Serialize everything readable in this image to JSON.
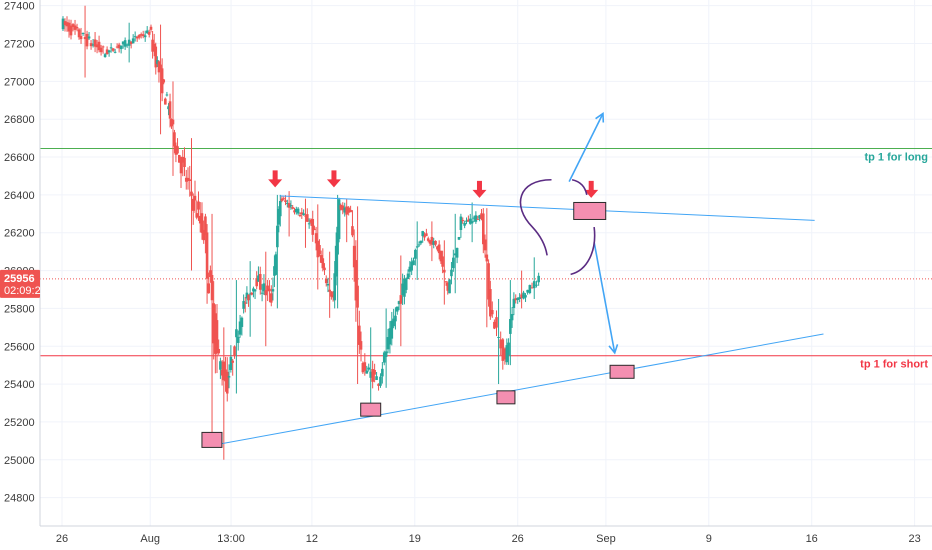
{
  "chart_data": {
    "type": "candlestick",
    "title": "",
    "xlabel": "",
    "ylabel": "",
    "ylim": [
      24650,
      27430
    ],
    "y_ticks": [
      24800,
      25000,
      25200,
      25400,
      25600,
      25800,
      26000,
      26200,
      26400,
      26600,
      26800,
      27000,
      27200,
      27400
    ],
    "x_ticks": [
      {
        "label": "26",
        "day": 0
      },
      {
        "label": "Aug",
        "day": 6
      },
      {
        "label": "13:00",
        "day": 11.5
      },
      {
        "label": "12",
        "day": 17
      },
      {
        "label": "19",
        "day": 24
      },
      {
        "label": "26",
        "day": 31
      },
      {
        "label": "Sep",
        "day": 37
      },
      {
        "label": "9",
        "day": 44
      },
      {
        "label": "16",
        "day": 51
      },
      {
        "label": "23",
        "day": 58
      }
    ],
    "grid": true,
    "colors": {
      "up": "#26a69a",
      "down": "#ef5350",
      "trendline": "#42a5f5",
      "long_level": "#4caf50",
      "short_level": "#f23645",
      "box_fill": "#f48fb1",
      "arc": "#5b2c83",
      "arrow": "#f23645"
    },
    "price_label": {
      "value": "25956",
      "countdown": "02:09:2"
    },
    "current_price": 25956,
    "levels": [
      {
        "label": "tp 1  for long",
        "value": 26645,
        "color": "#26a69a"
      },
      {
        "label": "tp 1 for short",
        "value": 25550,
        "color": "#f23645"
      }
    ],
    "trendlines": [
      {
        "name": "resistance",
        "from": {
          "day": 14.8,
          "price": 26395
        },
        "to": {
          "day": 51.2,
          "price": 26265
        }
      },
      {
        "name": "support",
        "from": {
          "day": 10.5,
          "price": 25080
        },
        "to": {
          "day": 51.8,
          "price": 25665
        }
      }
    ],
    "boxes": [
      {
        "day": 10.2,
        "price": 25105
      },
      {
        "day": 21.0,
        "price": 25265
      },
      {
        "day": 30.2,
        "price": 25330
      },
      {
        "day": 35.9,
        "price": 26315
      },
      {
        "day": 38.1,
        "price": 25465
      }
    ],
    "down_arrows": [
      {
        "day": 14.5,
        "price": 26450
      },
      {
        "day": 18.5,
        "price": 26450
      },
      {
        "day": 28.4,
        "price": 26395
      },
      {
        "day": 36.0,
        "price": 26395
      }
    ],
    "projection_arrows": [
      {
        "from": {
          "day": 34.5,
          "price": 26470
        },
        "to": {
          "day": 36.8,
          "price": 26830
        }
      },
      {
        "from": {
          "day": 36.2,
          "price": 26150
        },
        "to": {
          "day": 37.6,
          "price": 25565
        }
      }
    ],
    "segments": [
      {
        "t0": 0,
        "t1": 3,
        "o": 27310,
        "c": 27150,
        "low": 27020,
        "high": 27400,
        "n": 22
      },
      {
        "t0": 3,
        "t1": 6,
        "o": 27150,
        "c": 27260,
        "low": 27100,
        "high": 27310,
        "n": 22
      },
      {
        "t0": 6,
        "t1": 7.3,
        "o": 27260,
        "c": 26850,
        "low": 26720,
        "high": 27300,
        "n": 12
      },
      {
        "t0": 7.3,
        "t1": 7.8,
        "o": 26850,
        "c": 26650,
        "low": 26500,
        "high": 27000,
        "n": 5
      },
      {
        "t0": 7.8,
        "t1": 9.7,
        "o": 26650,
        "c": 26200,
        "low": 26000,
        "high": 26700,
        "n": 16
      },
      {
        "t0": 9.7,
        "t1": 10.6,
        "o": 26200,
        "c": 25560,
        "low": 25100,
        "high": 26300,
        "n": 8
      },
      {
        "t0": 10.6,
        "t1": 11.3,
        "o": 25560,
        "c": 25400,
        "low": 25000,
        "high": 25700,
        "n": 6
      },
      {
        "t0": 11.3,
        "t1": 12.3,
        "o": 25400,
        "c": 25800,
        "low": 25350,
        "high": 25950,
        "n": 8
      },
      {
        "t0": 12.3,
        "t1": 13.3,
        "o": 25800,
        "c": 25950,
        "low": 25650,
        "high": 26050,
        "n": 9
      },
      {
        "t0": 13.3,
        "t1": 14.3,
        "o": 25950,
        "c": 25850,
        "low": 25600,
        "high": 26100,
        "n": 8
      },
      {
        "t0": 14.3,
        "t1": 14.9,
        "o": 25850,
        "c": 26380,
        "low": 25800,
        "high": 26400,
        "n": 6
      },
      {
        "t0": 14.9,
        "t1": 16.0,
        "o": 26380,
        "c": 26320,
        "low": 26180,
        "high": 26420,
        "n": 9
      },
      {
        "t0": 16.0,
        "t1": 17.0,
        "o": 26320,
        "c": 26250,
        "low": 26120,
        "high": 26380,
        "n": 8
      },
      {
        "t0": 17.0,
        "t1": 17.8,
        "o": 26250,
        "c": 26000,
        "low": 25900,
        "high": 26350,
        "n": 7
      },
      {
        "t0": 17.8,
        "t1": 18.5,
        "o": 26000,
        "c": 25850,
        "low": 25750,
        "high": 26100,
        "n": 6
      },
      {
        "t0": 18.5,
        "t1": 18.9,
        "o": 25850,
        "c": 26340,
        "low": 25800,
        "high": 26400,
        "n": 4
      },
      {
        "t0": 18.9,
        "t1": 19.7,
        "o": 26340,
        "c": 26300,
        "low": 26150,
        "high": 26380,
        "n": 6
      },
      {
        "t0": 19.7,
        "t1": 20.4,
        "o": 26300,
        "c": 25500,
        "low": 25400,
        "high": 26340,
        "n": 6
      },
      {
        "t0": 20.4,
        "t1": 21.6,
        "o": 25500,
        "c": 25420,
        "low": 25300,
        "high": 25700,
        "n": 9
      },
      {
        "t0": 21.6,
        "t1": 22.5,
        "o": 25420,
        "c": 25700,
        "low": 25380,
        "high": 25800,
        "n": 7
      },
      {
        "t0": 22.5,
        "t1": 23.6,
        "o": 25700,
        "c": 26000,
        "low": 25600,
        "high": 26080,
        "n": 9
      },
      {
        "t0": 23.6,
        "t1": 24.6,
        "o": 26000,
        "c": 26200,
        "low": 25950,
        "high": 26260,
        "n": 8
      },
      {
        "t0": 24.6,
        "t1": 25.6,
        "o": 26200,
        "c": 26120,
        "low": 26050,
        "high": 26260,
        "n": 8
      },
      {
        "t0": 25.6,
        "t1": 26.3,
        "o": 26120,
        "c": 25900,
        "low": 25820,
        "high": 26160,
        "n": 6
      },
      {
        "t0": 26.3,
        "t1": 27.2,
        "o": 25900,
        "c": 26250,
        "low": 25880,
        "high": 26300,
        "n": 7
      },
      {
        "t0": 27.2,
        "t1": 28.6,
        "o": 26250,
        "c": 26290,
        "low": 26150,
        "high": 26360,
        "n": 11
      },
      {
        "t0": 28.6,
        "t1": 29.2,
        "o": 26290,
        "c": 25800,
        "low": 25700,
        "high": 26330,
        "n": 5
      },
      {
        "t0": 29.2,
        "t1": 30.2,
        "o": 25800,
        "c": 25520,
        "low": 25400,
        "high": 25850,
        "n": 7
      },
      {
        "t0": 30.2,
        "t1": 30.8,
        "o": 25520,
        "c": 25850,
        "low": 25500,
        "high": 25950,
        "n": 5
      },
      {
        "t0": 30.8,
        "t1": 31.6,
        "o": 25850,
        "c": 25880,
        "low": 25800,
        "high": 26000,
        "n": 6
      },
      {
        "t0": 31.6,
        "t1": 32.5,
        "o": 25880,
        "c": 25956,
        "low": 25850,
        "high": 26070,
        "n": 6
      }
    ]
  }
}
